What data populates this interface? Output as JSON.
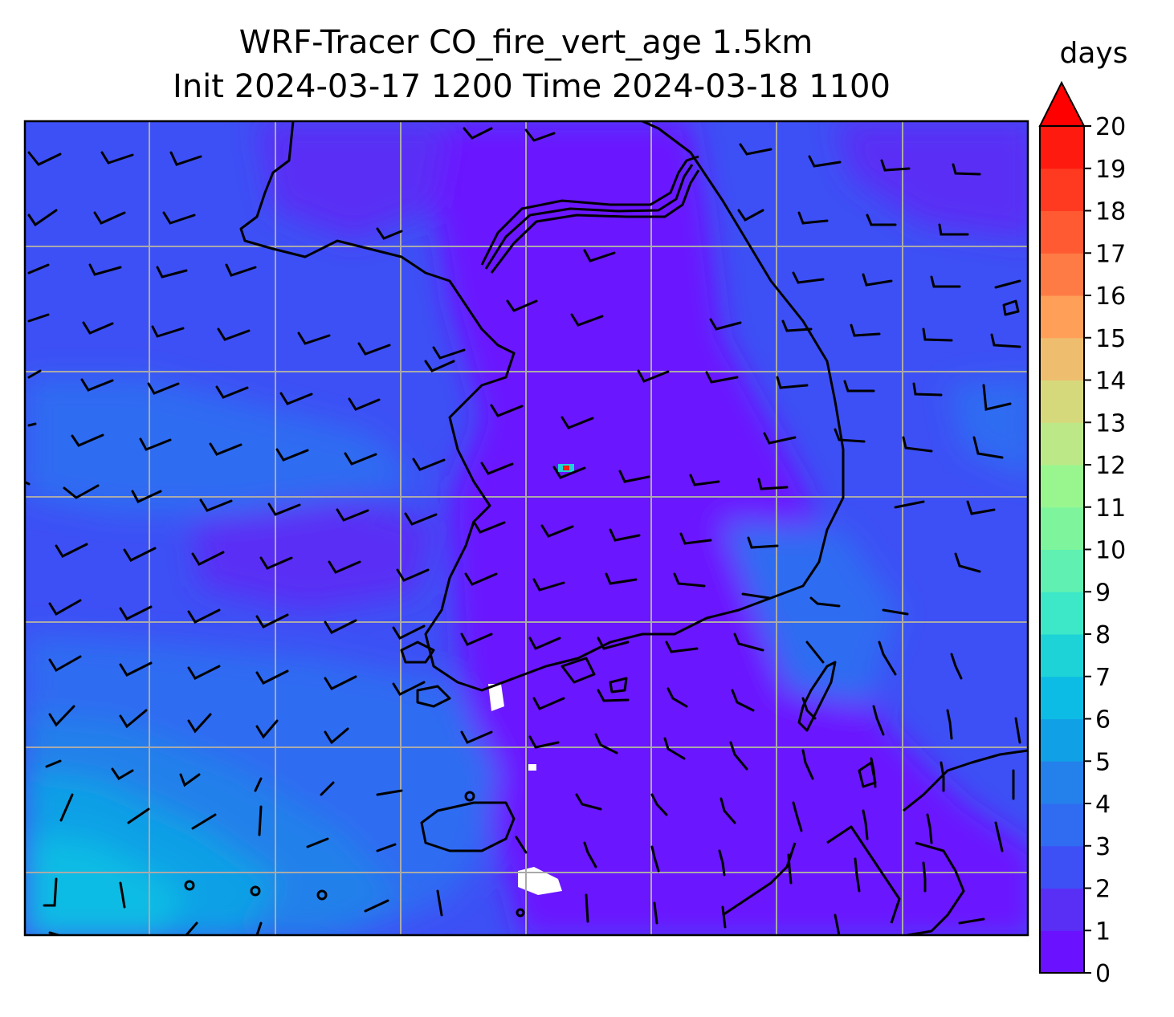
{
  "title": {
    "line1": "WRF-Tracer CO_fire_vert_age 1.5km",
    "line2": "Init 2024-03-17 1200 Time 2024-03-18 1100"
  },
  "colorbar": {
    "unit_label": "days",
    "ticks": [
      "0",
      "1",
      "2",
      "3",
      "4",
      "5",
      "6",
      "7",
      "8",
      "9",
      "10",
      "11",
      "12",
      "13",
      "14",
      "15",
      "16",
      "17",
      "18",
      "19",
      "20"
    ],
    "extend": "max",
    "colors": [
      "#6a12ff",
      "#5a2ff5",
      "#3d50f5",
      "#2f6cf2",
      "#2480ea",
      "#10a0e6",
      "#0cbce4",
      "#1ed3d7",
      "#3ce8c8",
      "#5ff0b2",
      "#7ef59c",
      "#99f68f",
      "#bce887",
      "#d6d87c",
      "#efbd6e",
      "#ff9f58",
      "#ff7b45",
      "#ff5a32",
      "#ff3a20",
      "#ff1a10"
    ],
    "extend_color": "#ff0000"
  },
  "map": {
    "field": "CO_fire_vert_age",
    "level": "1.5km",
    "gridlines": true,
    "wind_barbs": true,
    "coastlines": true
  }
}
